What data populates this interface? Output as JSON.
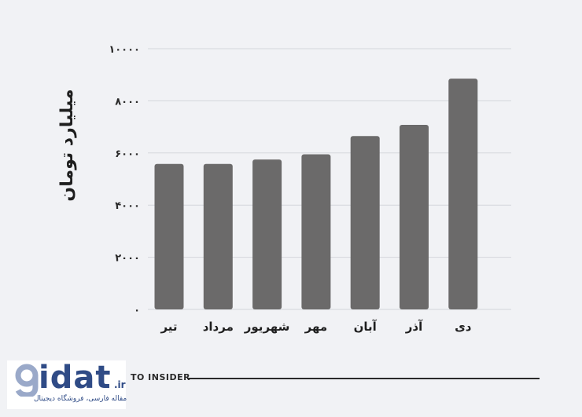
{
  "chart_data": {
    "type": "bar",
    "ylabel": "میلیارد تومان",
    "ylim": [
      0,
      10000
    ],
    "yticks": [
      0,
      2000,
      4000,
      6000,
      8000,
      10000
    ],
    "ytick_labels": [
      "۰",
      "۲۰۰۰",
      "۴۰۰۰",
      "۶۰۰۰",
      "۸۰۰۰",
      "۱۰۰۰۰"
    ],
    "categories": [
      "تیر",
      "مرداد",
      "شهریور",
      "مهر",
      "آبان",
      "آذر",
      "دی"
    ],
    "values": [
      5580,
      5580,
      5750,
      5950,
      6650,
      7080,
      8850
    ],
    "grid": true,
    "colors": {
      "bar": "#6b6a6a",
      "grid": "#d4d6db"
    }
  },
  "footer": {
    "source_text": "TO INSIDER"
  },
  "logo": {
    "word": "idat",
    "tld": ".ir",
    "tagline": "مقاله فارسی، فروشگاه دیجیتال",
    "color": "#2f4b86"
  }
}
